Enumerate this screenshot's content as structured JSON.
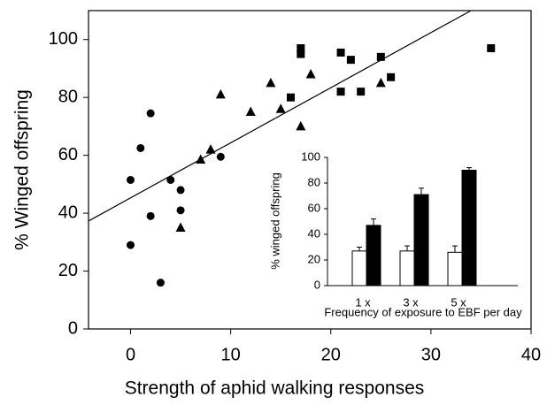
{
  "chart_data": [
    {
      "type": "scatter",
      "xlabel": "Strength of aphid walking responses",
      "ylabel": "% Winged offspring",
      "xlim": [
        -4.2,
        40
      ],
      "ylim": [
        0,
        110
      ],
      "xticks": [
        0,
        10,
        20,
        30,
        40
      ],
      "yticks": [
        0,
        20,
        40,
        60,
        80,
        100
      ],
      "series": [
        {
          "marker": "circle",
          "color": "#000000",
          "x": [
            0,
            0,
            1,
            2,
            2,
            3,
            4,
            5,
            5,
            9
          ],
          "values": [
            51.5,
            29,
            62.5,
            74.5,
            39,
            16,
            51.5,
            48,
            41,
            59.5
          ]
        },
        {
          "marker": "triangle",
          "color": "#000000",
          "x": [
            5,
            7,
            8,
            9,
            12,
            14,
            15,
            17,
            18,
            25
          ],
          "values": [
            35,
            58.5,
            62,
            81,
            75,
            85,
            76,
            70,
            88,
            85
          ]
        },
        {
          "marker": "square",
          "color": "#000000",
          "x": [
            16,
            17,
            17,
            21,
            21,
            22,
            23,
            25,
            26,
            36
          ],
          "values": [
            80,
            97,
            95,
            95.5,
            82,
            93,
            82,
            94,
            87,
            97
          ]
        }
      ],
      "trend_line": {
        "x": [
          -4.2,
          34
        ],
        "values": [
          37.3,
          110
        ]
      }
    },
    {
      "type": "bar",
      "xlabel": "Frequency of exposure to EBF per day",
      "ylabel": "% winged offspring",
      "categories": [
        "1 x",
        "3 x",
        "5 x"
      ],
      "ylim": [
        0,
        100
      ],
      "yticks": [
        0,
        20,
        40,
        60,
        80,
        100
      ],
      "series": [
        {
          "color": "#ffffff",
          "values": [
            27,
            27,
            26
          ],
          "errors": [
            3,
            4,
            5
          ]
        },
        {
          "color": "#000000",
          "values": [
            47,
            71,
            90
          ],
          "errors": [
            5,
            5,
            2
          ]
        }
      ]
    }
  ]
}
